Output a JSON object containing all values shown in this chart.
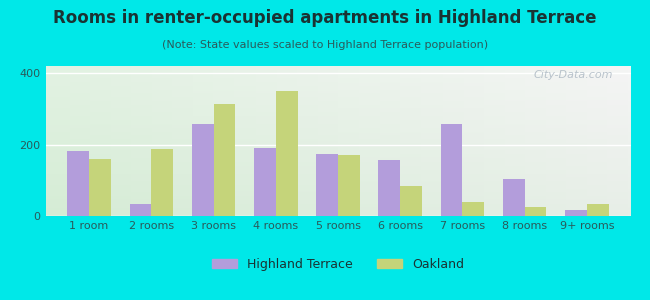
{
  "title": "Rooms in renter-occupied apartments in Highland Terrace",
  "subtitle": "(Note: State values scaled to Highland Terrace population)",
  "categories": [
    "1 room",
    "2 rooms",
    "3 rooms",
    "4 rooms",
    "5 rooms",
    "6 rooms",
    "7 rooms",
    "8 rooms",
    "9+ rooms"
  ],
  "highland_terrace": [
    183,
    35,
    258,
    190,
    173,
    158,
    258,
    103,
    18
  ],
  "oakland": [
    160,
    188,
    315,
    350,
    170,
    83,
    38,
    25,
    33
  ],
  "highland_color": "#b39ddb",
  "oakland_color": "#c5d47a",
  "background_color": "#00e8e8",
  "ylim": [
    0,
    420
  ],
  "yticks": [
    0,
    200,
    400
  ],
  "title_fontsize": 12,
  "subtitle_fontsize": 8,
  "tick_fontsize": 8,
  "legend_fontsize": 9,
  "watermark_text": "City-Data.com"
}
